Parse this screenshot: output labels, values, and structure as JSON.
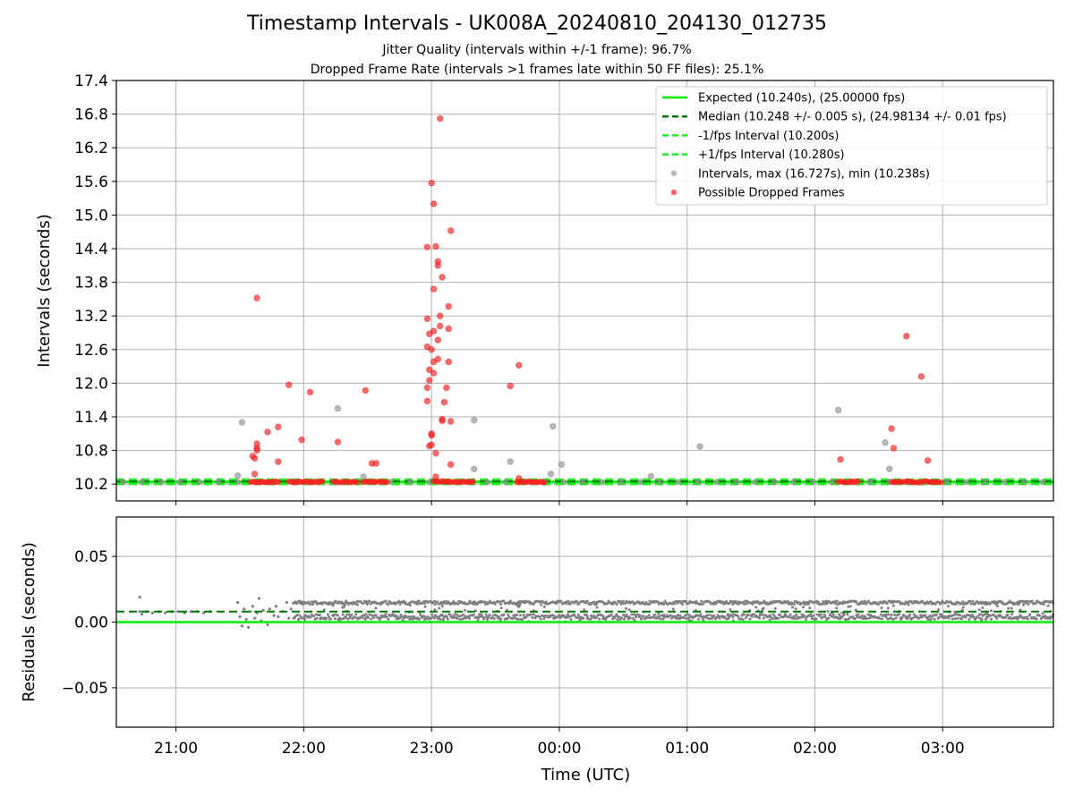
{
  "figure": {
    "title": "Timestamp Intervals - UK008A_20240810_204130_012735",
    "subtitle_1": "Jitter Quality (intervals within +/-1 frame): 96.7%",
    "subtitle_2": "Dropped Frame Rate (intervals >1 frames late within 50 FF files): 25.1%",
    "colors": {
      "expected": "#00ee00",
      "median": "#007700",
      "bounds": "#22ee22",
      "intervals": "#9a9a9a",
      "dropped": "#ff2020",
      "residuals": "#808080",
      "grid": "#b0b0b0"
    }
  },
  "chart_data": [
    {
      "type": "scatter",
      "panel": "top",
      "xlabel": "",
      "ylabel": "Intervals (seconds)",
      "x_ticks": [
        "21:00",
        "22:00",
        "23:00",
        "00:00",
        "01:00",
        "02:00",
        "03:00"
      ],
      "x_tick_labels_visible": false,
      "xlim": [
        "20:32",
        "03:52"
      ],
      "ylim": [
        9.9,
        17.4
      ],
      "y_ticks": [
        "10.2",
        "10.8",
        "11.4",
        "12.0",
        "12.6",
        "13.2",
        "13.8",
        "14.4",
        "15.0",
        "15.6",
        "16.2",
        "16.8",
        "17.4"
      ],
      "grid": true,
      "legend_position": "upper right",
      "legend": [
        {
          "label": "Expected (10.240s), (25.00000 fps)",
          "style": "solid",
          "color_key": "expected"
        },
        {
          "label": "Median (10.248 +/- 0.005 s), (24.98134 +/- 0.01 fps)",
          "style": "dashed",
          "color_key": "median"
        },
        {
          "label": "-1/fps Interval (10.200s)",
          "style": "dashed",
          "color_key": "bounds"
        },
        {
          "label": "+1/fps Interval (10.280s)",
          "style": "dashed",
          "color_key": "bounds"
        },
        {
          "label": "Intervals, max (16.727s), min (10.238s)",
          "style": "marker",
          "color_key": "intervals"
        },
        {
          "label": "Possible Dropped Frames",
          "style": "marker",
          "color_key": "dropped"
        }
      ],
      "reference_lines": {
        "expected": 10.24,
        "median": 10.248,
        "lower": 10.2,
        "upper": 10.28
      },
      "baseline_series": {
        "name": "Intervals, max (16.727s), min (10.238s)",
        "x_start": "20:35",
        "x_end": "03:52",
        "y": 10.24
      },
      "baseline_marker_times": [
        "20:35",
        "20:44",
        "20:53",
        "21:02",
        "21:11",
        "21:20",
        "21:29",
        "21:38",
        "21:47",
        "21:56",
        "22:05",
        "22:14",
        "22:23",
        "22:32",
        "22:41",
        "22:50",
        "22:59",
        "23:08",
        "23:17",
        "23:26",
        "23:35",
        "23:44",
        "23:53",
        "00:02",
        "00:11",
        "00:20",
        "00:29",
        "00:38",
        "00:47",
        "00:56",
        "01:05",
        "01:14",
        "01:23",
        "01:32",
        "01:41",
        "01:50",
        "01:59",
        "02:08",
        "02:17",
        "02:26",
        "02:35",
        "02:44",
        "02:53",
        "03:02",
        "03:11",
        "03:20",
        "03:29",
        "03:38",
        "03:47"
      ],
      "dropped_clusters": [
        {
          "x_start": "21:35",
          "x_end": "21:48",
          "y": 10.24
        },
        {
          "x_start": "21:53",
          "x_end": "22:09",
          "y": 10.24
        },
        {
          "x_start": "22:14",
          "x_end": "22:26",
          "y": 10.24
        },
        {
          "x_start": "22:28",
          "x_end": "22:40",
          "y": 10.24
        },
        {
          "x_start": "23:01",
          "x_end": "23:20",
          "y": 10.24
        },
        {
          "x_start": "23:40",
          "x_end": "23:53",
          "y": 10.24
        },
        {
          "x_start": "02:11",
          "x_end": "02:21",
          "y": 10.24
        },
        {
          "x_start": "02:36",
          "x_end": "03:00",
          "y": 10.24
        }
      ],
      "intervals_points": [
        {
          "x": "21:29",
          "y": 10.35
        },
        {
          "x": "21:31",
          "y": 11.3
        },
        {
          "x": "22:16",
          "y": 11.55
        },
        {
          "x": "22:28",
          "y": 10.33
        },
        {
          "x": "23:20",
          "y": 10.47
        },
        {
          "x": "23:20",
          "y": 11.34
        },
        {
          "x": "23:37",
          "y": 10.6
        },
        {
          "x": "23:56",
          "y": 10.38
        },
        {
          "x": "23:57",
          "y": 11.23
        },
        {
          "x": "00:01",
          "y": 10.55
        },
        {
          "x": "00:43",
          "y": 10.34
        },
        {
          "x": "01:06",
          "y": 10.87
        },
        {
          "x": "02:11",
          "y": 11.52
        },
        {
          "x": "02:33",
          "y": 10.94
        },
        {
          "x": "02:35",
          "y": 10.47
        }
      ],
      "dropped_points": [
        {
          "x": "21:36",
          "y": 10.7
        },
        {
          "x": "21:37",
          "y": 10.66
        },
        {
          "x": "21:37",
          "y": 10.38
        },
        {
          "x": "21:38",
          "y": 10.84
        },
        {
          "x": "21:38",
          "y": 10.92
        },
        {
          "x": "21:38",
          "y": 13.52
        },
        {
          "x": "21:38",
          "y": 10.8
        },
        {
          "x": "21:43",
          "y": 11.13
        },
        {
          "x": "21:48",
          "y": 10.6
        },
        {
          "x": "21:48",
          "y": 11.22
        },
        {
          "x": "21:53",
          "y": 11.97
        },
        {
          "x": "21:59",
          "y": 10.99
        },
        {
          "x": "22:03",
          "y": 11.84
        },
        {
          "x": "22:16",
          "y": 10.95
        },
        {
          "x": "22:29",
          "y": 11.87
        },
        {
          "x": "22:32",
          "y": 10.57
        },
        {
          "x": "22:34",
          "y": 10.57
        },
        {
          "x": "22:58",
          "y": 11.68
        },
        {
          "x": "22:58",
          "y": 11.92
        },
        {
          "x": "22:58",
          "y": 12.65
        },
        {
          "x": "22:58",
          "y": 13.15
        },
        {
          "x": "22:58",
          "y": 14.43
        },
        {
          "x": "22:59",
          "y": 12.05
        },
        {
          "x": "22:59",
          "y": 12.88
        },
        {
          "x": "22:59",
          "y": 10.88
        },
        {
          "x": "22:59",
          "y": 12.24
        },
        {
          "x": "23:00",
          "y": 15.57
        },
        {
          "x": "23:00",
          "y": 12.6
        },
        {
          "x": "23:00",
          "y": 11.07
        },
        {
          "x": "23:00",
          "y": 11.1
        },
        {
          "x": "23:00",
          "y": 10.9
        },
        {
          "x": "23:01",
          "y": 12.18
        },
        {
          "x": "23:01",
          "y": 12.38
        },
        {
          "x": "23:01",
          "y": 13.68
        },
        {
          "x": "23:01",
          "y": 12.93
        },
        {
          "x": "23:01",
          "y": 15.2
        },
        {
          "x": "23:02",
          "y": 10.75
        },
        {
          "x": "23:02",
          "y": 14.44
        },
        {
          "x": "23:02",
          "y": 10.33
        },
        {
          "x": "23:03",
          "y": 12.43
        },
        {
          "x": "23:03",
          "y": 14.1
        },
        {
          "x": "23:03",
          "y": 14.17
        },
        {
          "x": "23:03",
          "y": 12.77
        },
        {
          "x": "23:04",
          "y": 16.72
        },
        {
          "x": "23:04",
          "y": 13.02
        },
        {
          "x": "23:04",
          "y": 13.2
        },
        {
          "x": "23:05",
          "y": 11.33
        },
        {
          "x": "23:05",
          "y": 13.89
        },
        {
          "x": "23:05",
          "y": 11.36
        },
        {
          "x": "23:06",
          "y": 11.66
        },
        {
          "x": "23:07",
          "y": 11.92
        },
        {
          "x": "23:08",
          "y": 12.38
        },
        {
          "x": "23:08",
          "y": 12.97
        },
        {
          "x": "23:08",
          "y": 13.37
        },
        {
          "x": "23:09",
          "y": 11.32
        },
        {
          "x": "23:09",
          "y": 10.55
        },
        {
          "x": "23:09",
          "y": 14.72
        },
        {
          "x": "23:37",
          "y": 11.95
        },
        {
          "x": "23:41",
          "y": 12.32
        },
        {
          "x": "23:41",
          "y": 10.3
        },
        {
          "x": "02:12",
          "y": 10.64
        },
        {
          "x": "02:36",
          "y": 11.19
        },
        {
          "x": "02:37",
          "y": 10.84
        },
        {
          "x": "02:43",
          "y": 12.84
        },
        {
          "x": "02:50",
          "y": 12.12
        },
        {
          "x": "02:53",
          "y": 10.62
        }
      ]
    },
    {
      "type": "scatter",
      "panel": "bottom",
      "xlabel": "Time (UTC)",
      "ylabel": "Residuals (seconds)",
      "x_ticks": [
        "21:00",
        "22:00",
        "23:00",
        "00:00",
        "01:00",
        "02:00",
        "03:00"
      ],
      "xlim": [
        "20:32",
        "03:52"
      ],
      "ylim": [
        -0.08,
        0.08
      ],
      "y_ticks": [
        "−0.05",
        "0.00",
        "0.05"
      ],
      "grid": true,
      "reference_lines": {
        "zero": 0.0,
        "median": 0.008
      },
      "residual_band": {
        "x_start": "21:55",
        "x_end": "03:52",
        "y_min": 0.0,
        "y_max": 0.016
      },
      "residual_points": [
        {
          "x": "20:43",
          "y": 0.019
        },
        {
          "x": "20:43",
          "y": 0.008
        },
        {
          "x": "20:44",
          "y": 0.006
        },
        {
          "x": "20:46",
          "y": 0.008
        },
        {
          "x": "20:49",
          "y": 0.007
        },
        {
          "x": "20:52",
          "y": 0.008
        },
        {
          "x": "20:55",
          "y": 0.007
        },
        {
          "x": "20:58",
          "y": 0.008
        },
        {
          "x": "21:01",
          "y": 0.008
        },
        {
          "x": "21:04",
          "y": 0.007
        },
        {
          "x": "21:07",
          "y": 0.008
        },
        {
          "x": "21:10",
          "y": 0.008
        },
        {
          "x": "21:13",
          "y": 0.007
        },
        {
          "x": "21:16",
          "y": 0.008
        },
        {
          "x": "21:29",
          "y": 0.015
        },
        {
          "x": "21:30",
          "y": 0.004
        },
        {
          "x": "21:31",
          "y": -0.003
        },
        {
          "x": "21:32",
          "y": 0.01
        },
        {
          "x": "21:33",
          "y": 0.002
        },
        {
          "x": "21:34",
          "y": -0.004
        },
        {
          "x": "21:35",
          "y": 0.008
        },
        {
          "x": "21:36",
          "y": 0.012
        },
        {
          "x": "21:37",
          "y": 0.003
        },
        {
          "x": "21:38",
          "y": 0.007
        },
        {
          "x": "21:39",
          "y": 0.018
        },
        {
          "x": "21:40",
          "y": 0.001
        },
        {
          "x": "21:41",
          "y": 0.009
        },
        {
          "x": "21:43",
          "y": -0.002
        },
        {
          "x": "21:44",
          "y": 0.01
        },
        {
          "x": "21:46",
          "y": 0.005
        },
        {
          "x": "21:47",
          "y": 0.012
        },
        {
          "x": "21:48",
          "y": 0.004
        },
        {
          "x": "21:50",
          "y": 0.008
        },
        {
          "x": "21:52",
          "y": 0.015
        },
        {
          "x": "21:53",
          "y": 0.003
        },
        {
          "x": "21:54",
          "y": 0.01
        }
      ]
    }
  ]
}
